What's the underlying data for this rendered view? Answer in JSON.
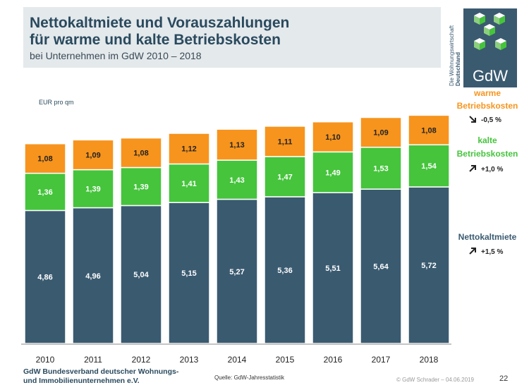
{
  "header": {
    "title_line1": "Nettokaltmiete und Vorauszahlungen",
    "title_line2": "für warme und kalte Betriebskosten",
    "subtitle": "bei Unternehmen im GdW 2010 – 2018"
  },
  "logo": {
    "text": "GdW",
    "vertical_line1": "Die Wohnungswirtschaft",
    "vertical_line2": "Deutschland"
  },
  "chart_data": {
    "type": "bar",
    "stacked": true,
    "ylabel": "EUR pro qm",
    "categories": [
      "2010",
      "2011",
      "2012",
      "2013",
      "2014",
      "2015",
      "2016",
      "2017",
      "2018"
    ],
    "series": [
      {
        "name": "Nettokaltmiete",
        "values": [
          4.86,
          4.96,
          5.04,
          5.15,
          5.27,
          5.36,
          5.51,
          5.64,
          5.72
        ],
        "labels": [
          "4,86",
          "4,96",
          "5,04",
          "5,15",
          "5,27",
          "5,36",
          "5,51",
          "5,64",
          "5,72"
        ],
        "color": "#3a5a70",
        "trend": "+1,5 %",
        "trend_icon": "arrow-up-right-icon"
      },
      {
        "name": "kalte Betriebskosten",
        "values": [
          1.36,
          1.39,
          1.39,
          1.41,
          1.43,
          1.47,
          1.49,
          1.53,
          1.54
        ],
        "labels": [
          "1,36",
          "1,39",
          "1,39",
          "1,41",
          "1,43",
          "1,47",
          "1,49",
          "1,53",
          "1,54"
        ],
        "color": "#45c43c",
        "trend": "+1,0 %",
        "trend_icon": "arrow-up-right-icon"
      },
      {
        "name": "warme Betriebskosten",
        "values": [
          1.08,
          1.09,
          1.08,
          1.12,
          1.13,
          1.11,
          1.1,
          1.09,
          1.08
        ],
        "labels": [
          "1,08",
          "1,09",
          "1,08",
          "1,12",
          "1,13",
          "1,11",
          "1,10",
          "1,09",
          "1,08"
        ],
        "color": "#f7941d",
        "trend": "-0,5 %",
        "trend_icon": "arrow-down-right-icon"
      }
    ],
    "legend_placement": "right",
    "grid": false
  },
  "legend": {
    "warm_line1": "warme",
    "warm_line2": "Betriebskosten",
    "kalt_line1": "kalte",
    "kalt_line2": "Betriebskosten",
    "netto": "Nettokaltmiete"
  },
  "footer": {
    "org_line1": "GdW Bundesverband deutscher Wohnungs-",
    "org_line2": "und Immobilienunternehmen e.V.",
    "source": "Quelle: GdW-Jahresstatistik",
    "copyright": "© GdW Schrader – 04.06.2019",
    "page": "22"
  }
}
